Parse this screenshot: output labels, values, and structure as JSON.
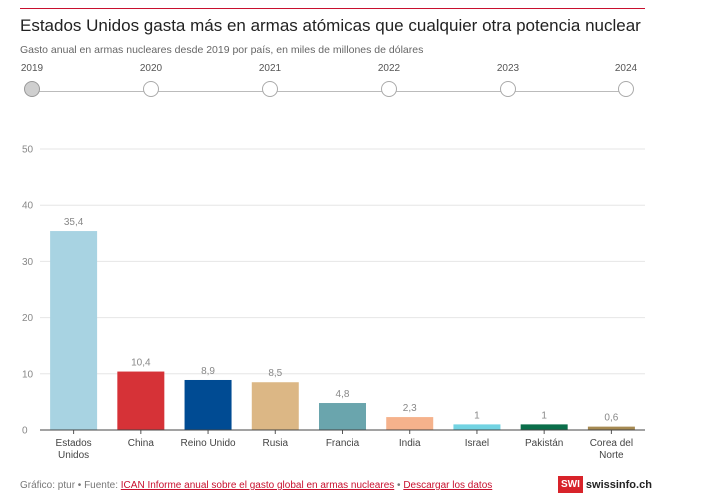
{
  "header": {
    "title": "Estados Unidos gasta más en armas atómicas que cualquier otra potencia nuclear",
    "subtitle": "Gasto anual en armas nucleares desde 2019 por país, en miles de millones de dólares"
  },
  "timeline": {
    "selected": "2019",
    "years": [
      "2019",
      "2020",
      "2021",
      "2022",
      "2023",
      "2024"
    ]
  },
  "chart_data": {
    "type": "bar",
    "categories": [
      "Estados Unidos",
      "China",
      "Reino Unido",
      "Rusia",
      "Francia",
      "India",
      "Israel",
      "Pakistán",
      "Corea del Norte"
    ],
    "category_lines": [
      [
        "Estados",
        "Unidos"
      ],
      [
        "China"
      ],
      [
        "Reino Unido"
      ],
      [
        "Rusia"
      ],
      [
        "Francia"
      ],
      [
        "India"
      ],
      [
        "Israel"
      ],
      [
        "Pakistán"
      ],
      [
        "Corea del",
        "Norte"
      ]
    ],
    "values": [
      35.4,
      10.4,
      8.9,
      8.5,
      4.8,
      2.3,
      1,
      1,
      0.6
    ],
    "value_labels": [
      "35,4",
      "10,4",
      "8,9",
      "8,5",
      "4,8",
      "2,3",
      "1",
      "1",
      "0,6"
    ],
    "colors": [
      "#a8d3e2",
      "#d63237",
      "#004b93",
      "#dcb785",
      "#6aa5ad",
      "#f5b28c",
      "#72d3e2",
      "#0a6e4a",
      "#a68a52"
    ],
    "yticks": [
      0,
      10,
      20,
      30,
      40,
      50
    ],
    "ylim": [
      0,
      50
    ],
    "grid": true,
    "xlabel": "",
    "ylabel": ""
  },
  "footer": {
    "prefix": "Gráfico: ptur • Fuente: ",
    "source_link": "ICAN Informe anual sobre el gasto global en armas nucleares",
    "separator": " • ",
    "download_link": "Descargar los datos"
  },
  "logo": {
    "box": "SWI",
    "text": "swissinfo.ch"
  }
}
